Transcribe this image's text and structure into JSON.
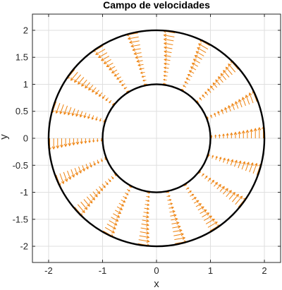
{
  "chart_data": {
    "type": "quiver",
    "title": "Campo de velocidades",
    "xlabel": "x",
    "ylabel": "y",
    "xlim": [
      -2.3,
      2.3
    ],
    "ylim": [
      -2.3,
      2.3
    ],
    "xticks": [
      -2,
      -1,
      0,
      1,
      2
    ],
    "yticks": [
      -2,
      -1.5,
      -1,
      -0.5,
      0,
      0.5,
      1,
      1.5,
      2
    ],
    "xtick_labels": [
      "-2",
      "-1",
      "0",
      "1",
      "2"
    ],
    "ytick_labels": [
      "-2",
      "-1.5",
      "-1",
      "-0.5",
      "0",
      "0.5",
      "1",
      "1.5",
      "2"
    ],
    "grid": true,
    "circles": [
      {
        "name": "inner boundary",
        "radius": 1,
        "color": "#000000"
      },
      {
        "name": "outer boundary",
        "radius": 2,
        "color": "#000000"
      }
    ],
    "vector_field": {
      "color": "#EE8310",
      "description": "tangential (counter-clockwise) velocity vectors on radial rays between r=1 and r=2",
      "ray_angles_deg": [
        0,
        20,
        40,
        60,
        80,
        100,
        120,
        140,
        160,
        180,
        200,
        220,
        240,
        260,
        280,
        300,
        320,
        340
      ],
      "r_min": 1.02,
      "r_max": 1.98,
      "points_per_ray": 14,
      "magnitude_at_outer": 0.22
    }
  },
  "colors": {
    "axes": "#262626",
    "grid": "#dfdfdf",
    "vectors": "#EE8310",
    "circles": "#000000"
  }
}
